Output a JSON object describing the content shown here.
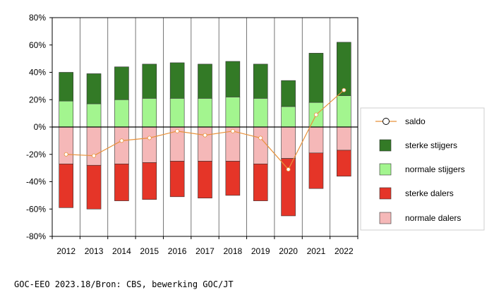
{
  "chart_data": {
    "type": "bar",
    "stacked": true,
    "categories": [
      "2012",
      "2013",
      "2014",
      "2015",
      "2016",
      "2017",
      "2018",
      "2019",
      "2020",
      "2021",
      "2022"
    ],
    "ylim": [
      -80,
      80
    ],
    "yticks": [
      "80%",
      "60%",
      "40%",
      "20%",
      "0%",
      "-20%",
      "-40%",
      "-60%",
      "-80%"
    ],
    "ytick_values": [
      80,
      60,
      40,
      20,
      0,
      -20,
      -40,
      -60,
      -80
    ],
    "grid": "vertical lines between categories",
    "legend_position": "right",
    "series": [
      {
        "name": "sterke stijgers",
        "color": "#337a26",
        "values": [
          21,
          22,
          24,
          25,
          26,
          25,
          26,
          25,
          19,
          36,
          39
        ]
      },
      {
        "name": "normale stijgers",
        "color": "#a3f58f",
        "values": [
          19,
          17,
          20,
          21,
          21,
          21,
          22,
          21,
          15,
          18,
          23
        ]
      },
      {
        "name": "sterke dalers",
        "color": "#e53528",
        "values": [
          -32,
          -32,
          -27,
          -27,
          -26,
          -27,
          -25,
          -27,
          -42,
          -26,
          -19
        ]
      },
      {
        "name": "normale dalers",
        "color": "#f5b8b8",
        "values": [
          -27,
          -28,
          -27,
          -26,
          -25,
          -25,
          -25,
          -27,
          -23,
          -19,
          -17
        ]
      },
      {
        "name": "saldo",
        "type": "line",
        "color": "#e8913a",
        "values": [
          -20,
          -21,
          -10,
          -8,
          -3,
          -6,
          -3,
          -8,
          -31,
          9,
          27
        ]
      }
    ],
    "legend": [
      "saldo",
      "sterke stijgers",
      "normale stijgers",
      "sterke dalers",
      "normale dalers"
    ]
  },
  "footer": {
    "source": "GOC-EEO 2023.18/Bron: CBS, bewerking GOC/JT"
  }
}
